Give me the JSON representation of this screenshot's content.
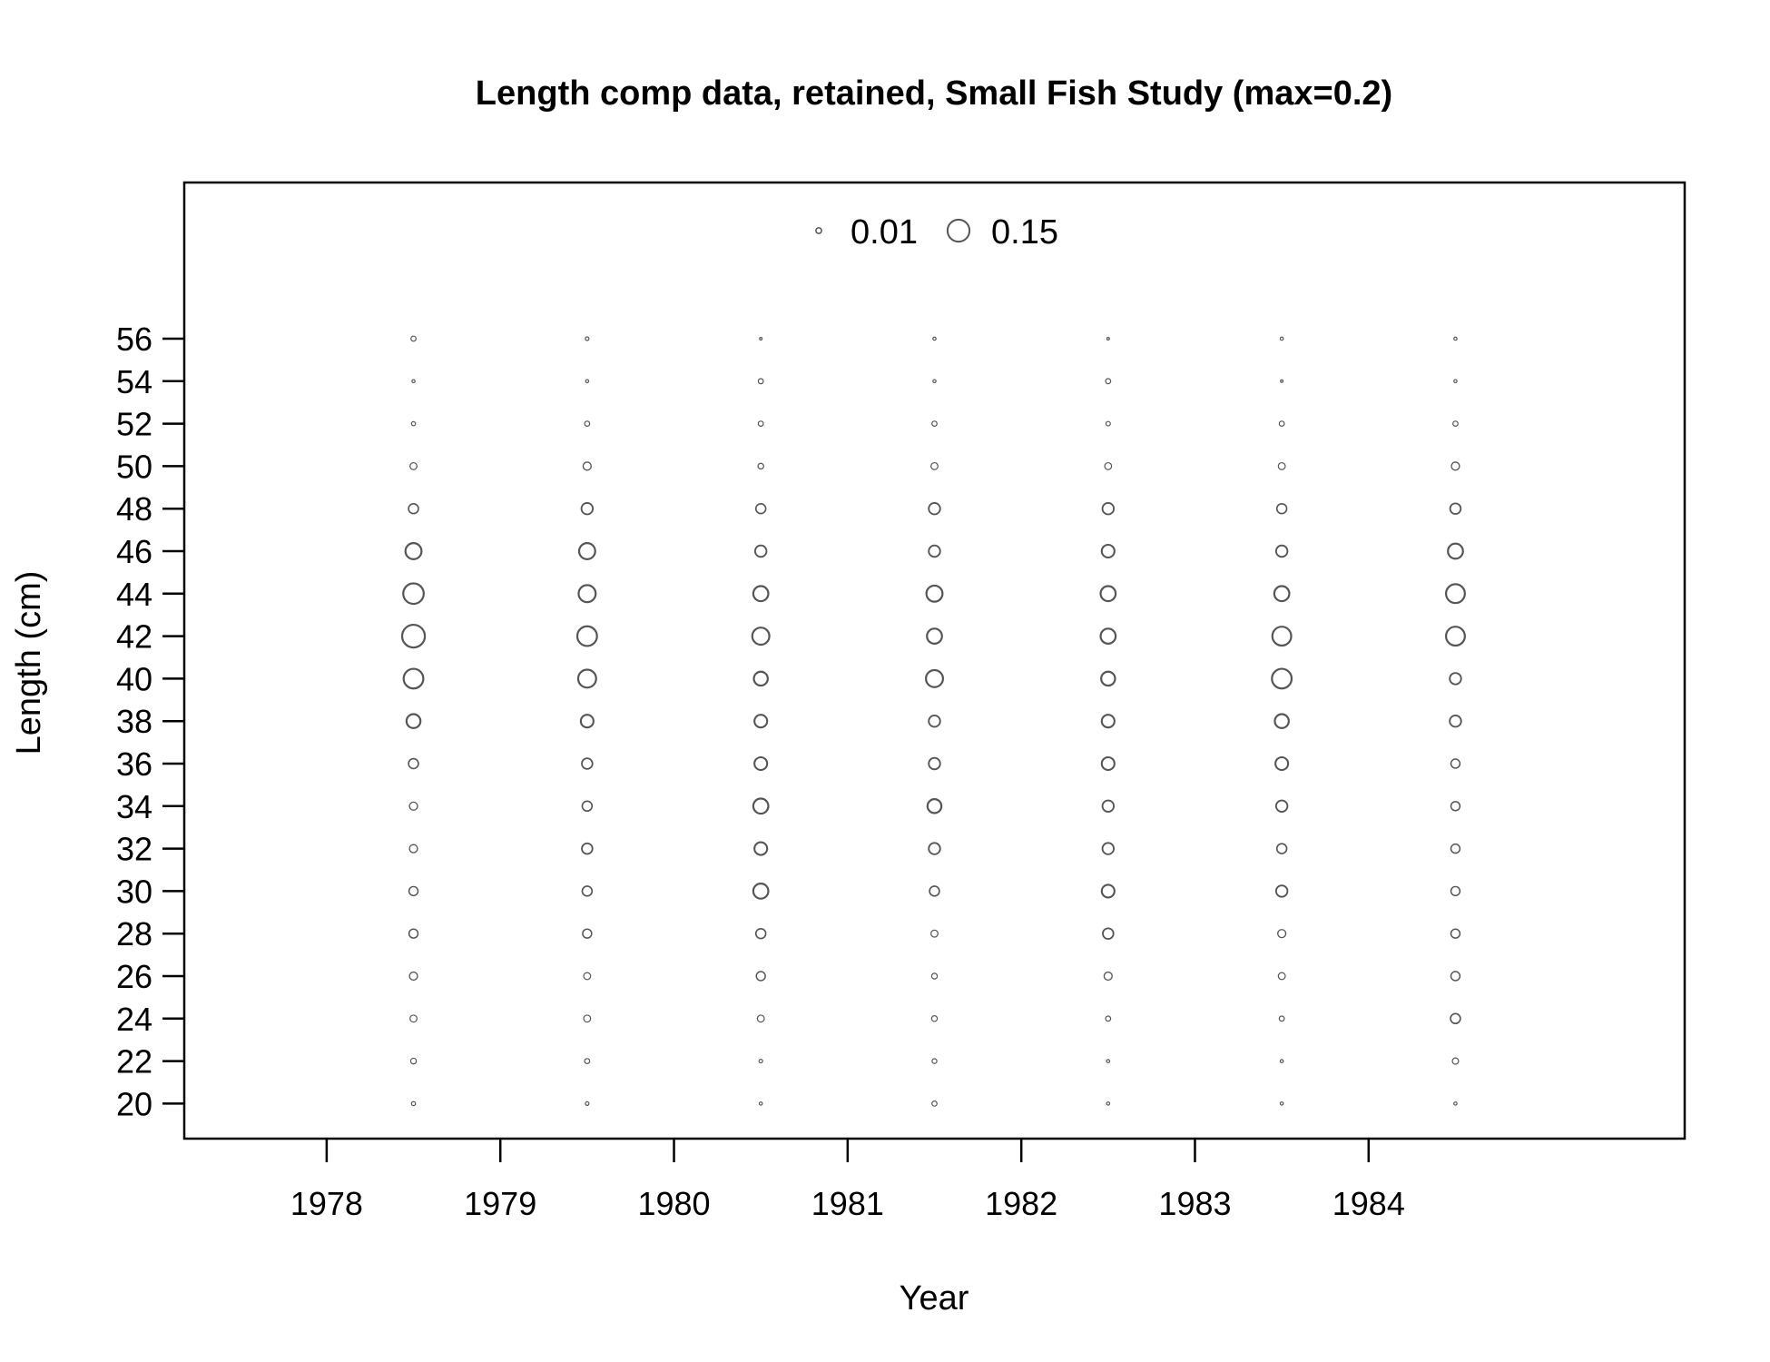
{
  "chart_data": {
    "type": "scatter",
    "subtype": "bubble",
    "title": "Length comp data, retained, Small Fish Study (max=0.2)",
    "xlabel": "Year",
    "ylabel": "Length (cm)",
    "x_ticks": [
      1978,
      1979,
      1980,
      1981,
      1982,
      1983,
      1984
    ],
    "y_ticks": [
      20,
      22,
      24,
      26,
      28,
      30,
      32,
      34,
      36,
      38,
      40,
      42,
      44,
      46,
      48,
      50,
      52,
      54,
      56
    ],
    "xlim": [
      1977.18,
      1985.82
    ],
    "ylim": [
      18.35,
      63.35
    ],
    "max_proportion": 0.2,
    "legend": {
      "placement": "top",
      "entries": [
        {
          "label": "0.01",
          "value": 0.01
        },
        {
          "label": "0.15",
          "value": 0.15
        }
      ]
    },
    "bubble_color": "#555555",
    "lengths": [
      20,
      22,
      24,
      26,
      28,
      30,
      32,
      34,
      36,
      38,
      40,
      42,
      44,
      46,
      48,
      50,
      52,
      54,
      56
    ],
    "series": [
      {
        "x": 1978.5,
        "values": [
          0.005,
          0.01,
          0.015,
          0.02,
          0.025,
          0.025,
          0.02,
          0.02,
          0.03,
          0.06,
          0.12,
          0.16,
          0.13,
          0.08,
          0.03,
          0.015,
          0.005,
          0.003,
          0.008
        ]
      },
      {
        "x": 1979.5,
        "values": [
          0.004,
          0.008,
          0.015,
          0.015,
          0.025,
          0.03,
          0.035,
          0.03,
          0.035,
          0.05,
          0.1,
          0.12,
          0.09,
          0.08,
          0.04,
          0.02,
          0.008,
          0.003,
          0.004
        ]
      },
      {
        "x": 1980.5,
        "values": [
          0.003,
          0.004,
          0.015,
          0.025,
          0.03,
          0.07,
          0.05,
          0.07,
          0.05,
          0.05,
          0.06,
          0.09,
          0.07,
          0.04,
          0.03,
          0.01,
          0.008,
          0.008,
          0.002
        ]
      },
      {
        "x": 1981.5,
        "values": [
          0.008,
          0.007,
          0.01,
          0.01,
          0.015,
          0.03,
          0.04,
          0.06,
          0.04,
          0.04,
          0.09,
          0.07,
          0.08,
          0.04,
          0.04,
          0.015,
          0.008,
          0.003,
          0.003
        ]
      },
      {
        "x": 1982.5,
        "values": [
          0.003,
          0.003,
          0.008,
          0.02,
          0.035,
          0.05,
          0.04,
          0.04,
          0.05,
          0.05,
          0.06,
          0.07,
          0.07,
          0.05,
          0.04,
          0.015,
          0.006,
          0.008,
          0.002
        ]
      },
      {
        "x": 1983.5,
        "values": [
          0.003,
          0.003,
          0.008,
          0.015,
          0.02,
          0.04,
          0.03,
          0.04,
          0.05,
          0.06,
          0.12,
          0.11,
          0.07,
          0.04,
          0.03,
          0.015,
          0.008,
          0.002,
          0.003
        ]
      },
      {
        "x": 1984.5,
        "values": [
          0.003,
          0.012,
          0.03,
          0.025,
          0.025,
          0.025,
          0.025,
          0.025,
          0.025,
          0.04,
          0.04,
          0.11,
          0.11,
          0.07,
          0.035,
          0.02,
          0.008,
          0.003,
          0.003
        ]
      }
    ]
  }
}
